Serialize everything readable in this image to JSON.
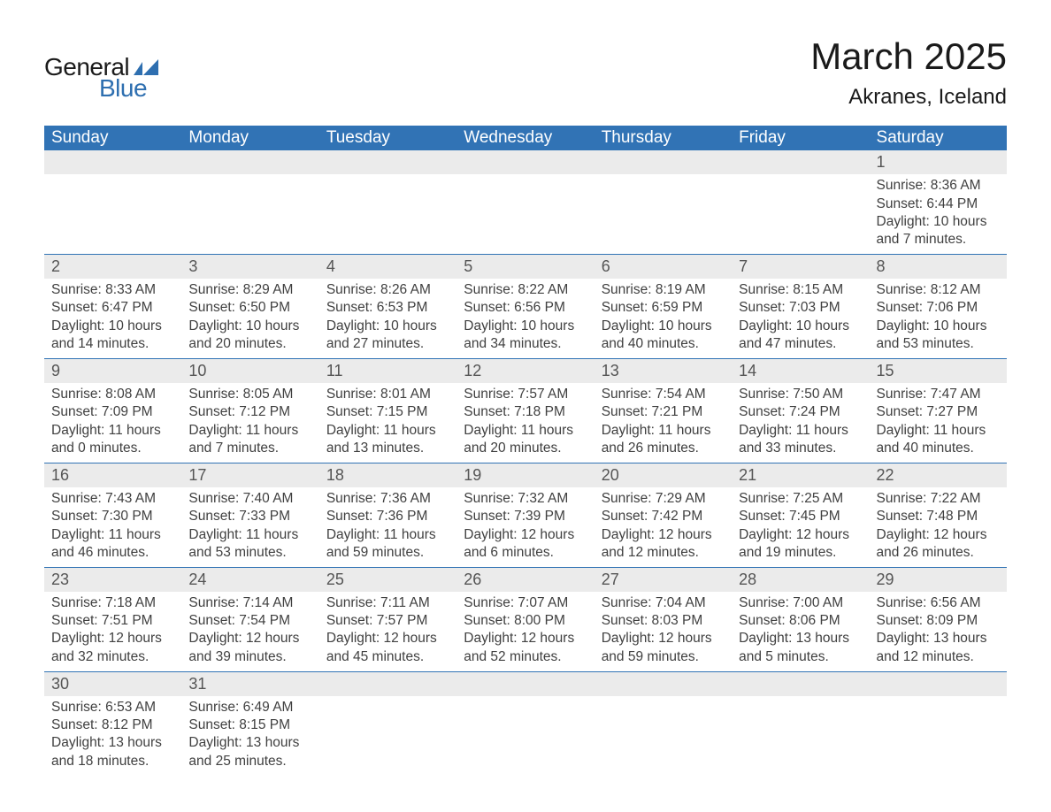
{
  "brand": {
    "text1": "General",
    "text2": "Blue",
    "icon_color": "#2e6fb0"
  },
  "title": "March 2025",
  "location": "Akranes, Iceland",
  "colors": {
    "header_bg": "#3173b5",
    "header_text": "#ffffff",
    "daynum_bg": "#ebebeb",
    "daynum_text": "#555555",
    "body_text": "#404040",
    "week_border": "#3173b5",
    "page_bg": "#ffffff"
  },
  "day_headers": [
    "Sunday",
    "Monday",
    "Tuesday",
    "Wednesday",
    "Thursday",
    "Friday",
    "Saturday"
  ],
  "weeks": [
    [
      null,
      null,
      null,
      null,
      null,
      null,
      {
        "n": "1",
        "sunrise": "8:36 AM",
        "sunset": "6:44 PM",
        "dl_h": "10",
        "dl_m": "7"
      }
    ],
    [
      {
        "n": "2",
        "sunrise": "8:33 AM",
        "sunset": "6:47 PM",
        "dl_h": "10",
        "dl_m": "14"
      },
      {
        "n": "3",
        "sunrise": "8:29 AM",
        "sunset": "6:50 PM",
        "dl_h": "10",
        "dl_m": "20"
      },
      {
        "n": "4",
        "sunrise": "8:26 AM",
        "sunset": "6:53 PM",
        "dl_h": "10",
        "dl_m": "27"
      },
      {
        "n": "5",
        "sunrise": "8:22 AM",
        "sunset": "6:56 PM",
        "dl_h": "10",
        "dl_m": "34"
      },
      {
        "n": "6",
        "sunrise": "8:19 AM",
        "sunset": "6:59 PM",
        "dl_h": "10",
        "dl_m": "40"
      },
      {
        "n": "7",
        "sunrise": "8:15 AM",
        "sunset": "7:03 PM",
        "dl_h": "10",
        "dl_m": "47"
      },
      {
        "n": "8",
        "sunrise": "8:12 AM",
        "sunset": "7:06 PM",
        "dl_h": "10",
        "dl_m": "53"
      }
    ],
    [
      {
        "n": "9",
        "sunrise": "8:08 AM",
        "sunset": "7:09 PM",
        "dl_h": "11",
        "dl_m": "0"
      },
      {
        "n": "10",
        "sunrise": "8:05 AM",
        "sunset": "7:12 PM",
        "dl_h": "11",
        "dl_m": "7"
      },
      {
        "n": "11",
        "sunrise": "8:01 AM",
        "sunset": "7:15 PM",
        "dl_h": "11",
        "dl_m": "13"
      },
      {
        "n": "12",
        "sunrise": "7:57 AM",
        "sunset": "7:18 PM",
        "dl_h": "11",
        "dl_m": "20"
      },
      {
        "n": "13",
        "sunrise": "7:54 AM",
        "sunset": "7:21 PM",
        "dl_h": "11",
        "dl_m": "26"
      },
      {
        "n": "14",
        "sunrise": "7:50 AM",
        "sunset": "7:24 PM",
        "dl_h": "11",
        "dl_m": "33"
      },
      {
        "n": "15",
        "sunrise": "7:47 AM",
        "sunset": "7:27 PM",
        "dl_h": "11",
        "dl_m": "40"
      }
    ],
    [
      {
        "n": "16",
        "sunrise": "7:43 AM",
        "sunset": "7:30 PM",
        "dl_h": "11",
        "dl_m": "46"
      },
      {
        "n": "17",
        "sunrise": "7:40 AM",
        "sunset": "7:33 PM",
        "dl_h": "11",
        "dl_m": "53"
      },
      {
        "n": "18",
        "sunrise": "7:36 AM",
        "sunset": "7:36 PM",
        "dl_h": "11",
        "dl_m": "59"
      },
      {
        "n": "19",
        "sunrise": "7:32 AM",
        "sunset": "7:39 PM",
        "dl_h": "12",
        "dl_m": "6"
      },
      {
        "n": "20",
        "sunrise": "7:29 AM",
        "sunset": "7:42 PM",
        "dl_h": "12",
        "dl_m": "12"
      },
      {
        "n": "21",
        "sunrise": "7:25 AM",
        "sunset": "7:45 PM",
        "dl_h": "12",
        "dl_m": "19"
      },
      {
        "n": "22",
        "sunrise": "7:22 AM",
        "sunset": "7:48 PM",
        "dl_h": "12",
        "dl_m": "26"
      }
    ],
    [
      {
        "n": "23",
        "sunrise": "7:18 AM",
        "sunset": "7:51 PM",
        "dl_h": "12",
        "dl_m": "32"
      },
      {
        "n": "24",
        "sunrise": "7:14 AM",
        "sunset": "7:54 PM",
        "dl_h": "12",
        "dl_m": "39"
      },
      {
        "n": "25",
        "sunrise": "7:11 AM",
        "sunset": "7:57 PM",
        "dl_h": "12",
        "dl_m": "45"
      },
      {
        "n": "26",
        "sunrise": "7:07 AM",
        "sunset": "8:00 PM",
        "dl_h": "12",
        "dl_m": "52"
      },
      {
        "n": "27",
        "sunrise": "7:04 AM",
        "sunset": "8:03 PM",
        "dl_h": "12",
        "dl_m": "59"
      },
      {
        "n": "28",
        "sunrise": "7:00 AM",
        "sunset": "8:06 PM",
        "dl_h": "13",
        "dl_m": "5"
      },
      {
        "n": "29",
        "sunrise": "6:56 AM",
        "sunset": "8:09 PM",
        "dl_h": "13",
        "dl_m": "12"
      }
    ],
    [
      {
        "n": "30",
        "sunrise": "6:53 AM",
        "sunset": "8:12 PM",
        "dl_h": "13",
        "dl_m": "18"
      },
      {
        "n": "31",
        "sunrise": "6:49 AM",
        "sunset": "8:15 PM",
        "dl_h": "13",
        "dl_m": "25"
      },
      null,
      null,
      null,
      null,
      null
    ]
  ],
  "labels": {
    "sunrise": "Sunrise: ",
    "sunset": "Sunset: ",
    "daylight1": "Daylight: ",
    "hours_word": " hours",
    "and_word": "and ",
    "minutes_word": " minutes."
  }
}
